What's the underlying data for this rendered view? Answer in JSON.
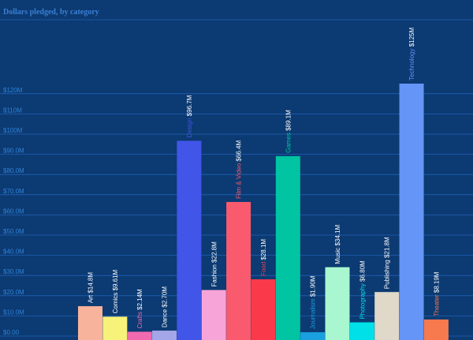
{
  "chart_data": {
    "type": "bar",
    "title": "Dollars pledged, by category",
    "xlabel": "",
    "ylabel": "",
    "ylim": [
      0,
      125
    ],
    "y_ticks": [
      {
        "value": 0,
        "label": "$0.00"
      },
      {
        "value": 10,
        "label": "$10.0M"
      },
      {
        "value": 20,
        "label": "$20.0M"
      },
      {
        "value": 30,
        "label": "$30.0M"
      },
      {
        "value": 40,
        "label": "$40.0M"
      },
      {
        "value": 50,
        "label": "$50.0M"
      },
      {
        "value": 60,
        "label": "$60.0M"
      },
      {
        "value": 70,
        "label": "$70.0M"
      },
      {
        "value": 80,
        "label": "$80.0M"
      },
      {
        "value": 90,
        "label": "$90.0M"
      },
      {
        "value": 100,
        "label": "$100M"
      },
      {
        "value": 110,
        "label": "$110M"
      },
      {
        "value": 120,
        "label": "$120M"
      }
    ],
    "grid": true,
    "categories": [
      "Art",
      "Comics",
      "Crafts",
      "Dance",
      "Design",
      "Fashion",
      "Film & Video",
      "Food",
      "Games",
      "Journalism",
      "Music",
      "Photography",
      "Publishing",
      "Technology",
      "Theater"
    ],
    "values": [
      14.8,
      9.61,
      2.14,
      2.7,
      96.7,
      22.8,
      66.4,
      28.1,
      89.1,
      1.9,
      34.1,
      6.8,
      21.8,
      125,
      8.19
    ],
    "value_labels": [
      "$14.8M",
      "$9.61M",
      "$2.14M",
      "$2.70M",
      "$96.7M",
      "$22.8M",
      "$66.4M",
      "$28.1M",
      "$89.1M",
      "$1.90M",
      "$34.1M",
      "$6.80M",
      "$21.8M",
      "$125M",
      "$8.19M"
    ],
    "bar_colors": [
      "#f7b39b",
      "#f7f37a",
      "#f06ab0",
      "#a3a6e8",
      "#4156e8",
      "#f7a4d8",
      "#f95a6e",
      "#fa3a4a",
      "#00c4a2",
      "#1aa0e0",
      "#a8f7d0",
      "#00e0e8",
      "#e0d8c8",
      "#6495f7",
      "#f77a4e"
    ],
    "label_colors": [
      "#ffffff",
      "#ffffff",
      "#f06ab0",
      "#ffffff",
      "#4156e8",
      "#ffffff",
      "#f95a6e",
      "#fa3a4a",
      "#00c4a2",
      "#1aa0e0",
      "#ffffff",
      "#00e0e8",
      "#ffffff",
      "#6495f7",
      "#f77a4e"
    ],
    "value_label_color": "#ffffff",
    "background_color": "#0c3a72",
    "grid_color": "#1f63b8",
    "tick_label_color": "#2e82d6"
  }
}
